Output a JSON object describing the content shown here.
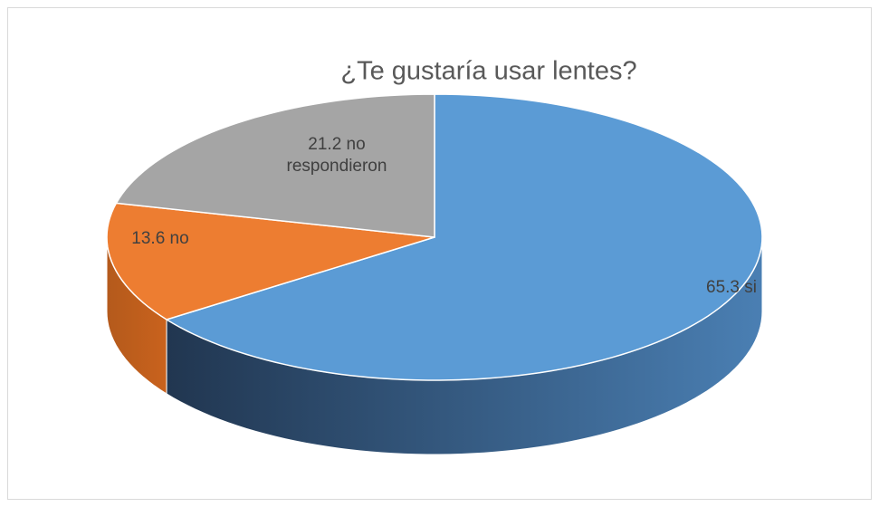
{
  "chart_data": {
    "type": "pie3d",
    "title": "¿Te gustaría usar lentes?",
    "values": [
      65.3,
      13.6,
      21.2
    ],
    "value_labels": [
      "65.3 si",
      "13.6 no",
      "21.2 no respondieron"
    ],
    "colors": [
      "#5b9bd5",
      "#ed7d31",
      "#a5a5a5"
    ],
    "side_colors": [
      [
        "#4a7fb3",
        "#213650"
      ],
      [
        "#c9621d",
        "#b45a1c"
      ],
      [
        "#8a8a8a",
        "#6f6f6f"
      ]
    ],
    "start_angle": 0,
    "direction": "clockwise"
  }
}
